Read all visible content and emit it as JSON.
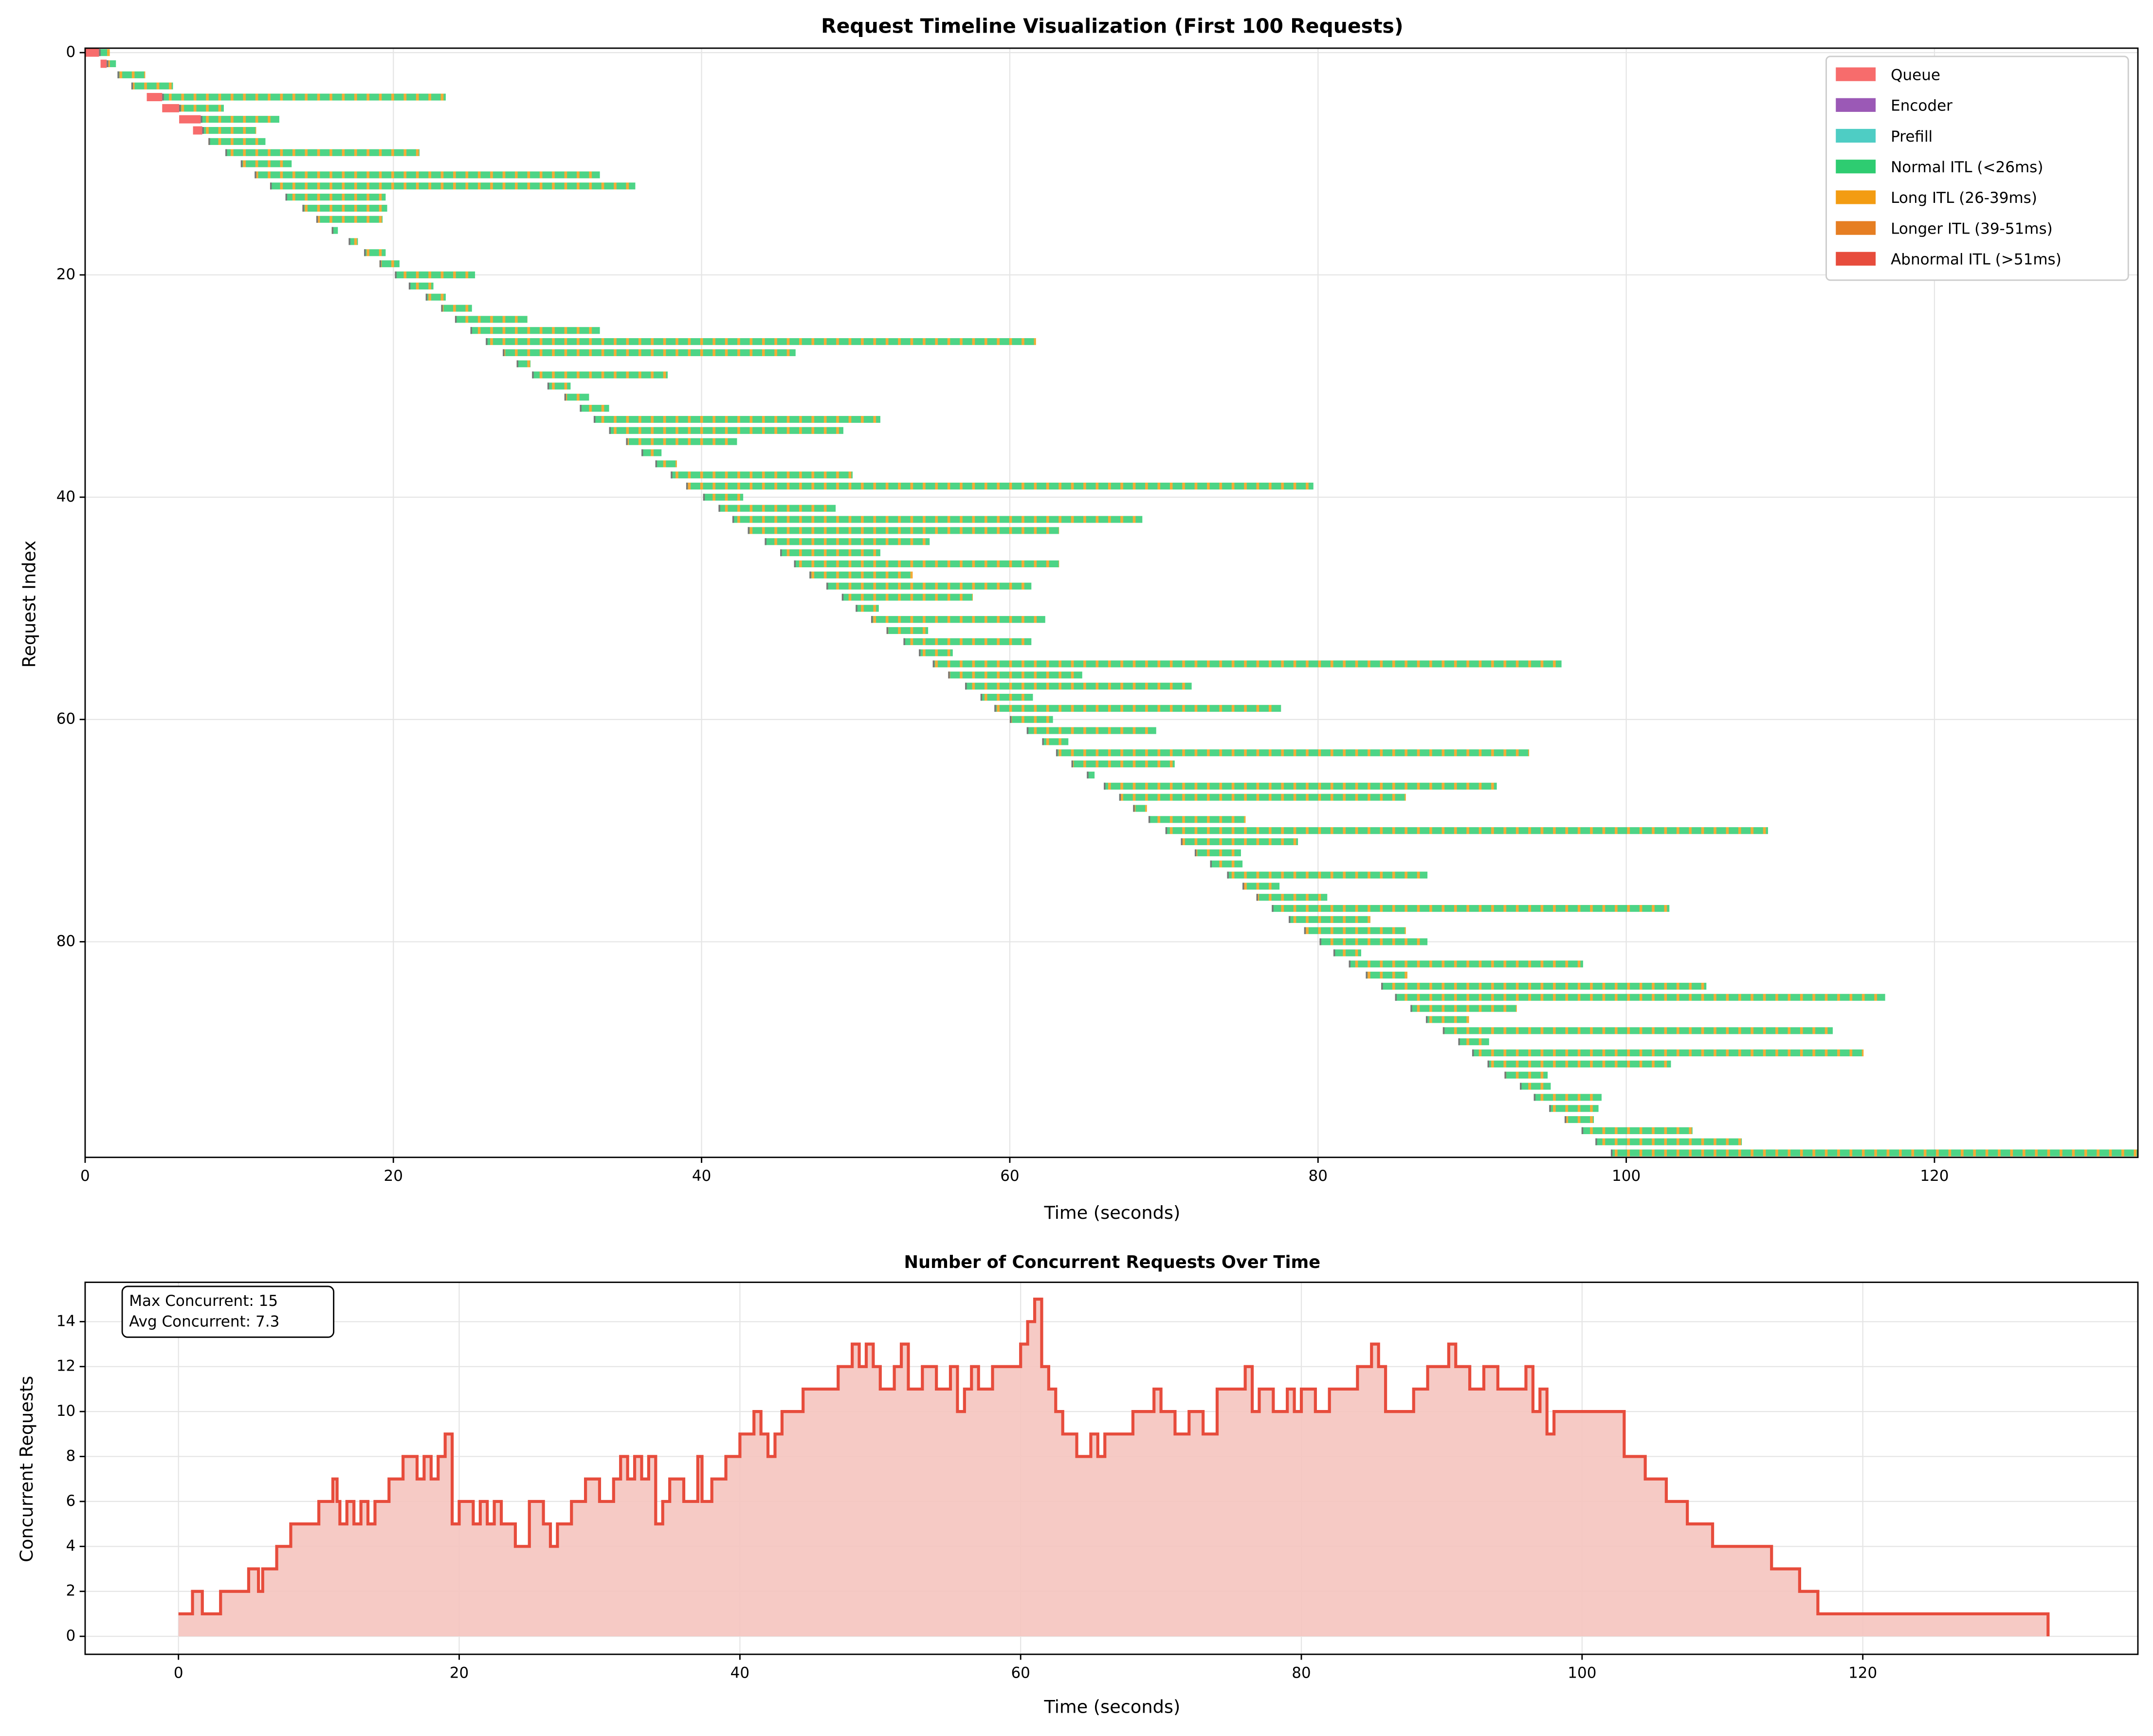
{
  "chart_data": [
    {
      "type": "timeline",
      "title": "Request Timeline Visualization (First 100 Requests)",
      "xlabel": "Time (seconds)",
      "ylabel": "Request Index",
      "xlim": [
        0,
        133.2
      ],
      "xticks": [
        0,
        20,
        40,
        60,
        80,
        100,
        120
      ],
      "ylim": [
        -0.4,
        99.4
      ],
      "yticks": [
        0,
        20,
        40,
        60,
        80
      ],
      "y_inverted": true,
      "grid": true,
      "legend_position": "upper right",
      "legend": [
        {
          "name": "Queue",
          "color": "#f76c6c"
        },
        {
          "name": "Encoder",
          "color": "#9b59b6"
        },
        {
          "name": "Prefill",
          "color": "#4ecdc4"
        },
        {
          "name": "Normal ITL (<26ms)",
          "color": "#2ecc71"
        },
        {
          "name": "Long ITL (26-39ms)",
          "color": "#f39c12"
        },
        {
          "name": "Longer ITL (39-51ms)",
          "color": "#e67e22"
        },
        {
          "name": "Abnormal ITL (>51ms)",
          "color": "#e74c3c"
        }
      ],
      "arrival": [
        0,
        1.0,
        2.1,
        3.0,
        4.0,
        5.0,
        6.1,
        7.0,
        8.0,
        9.1,
        10.1,
        11.0,
        12.0,
        13.0,
        14.1,
        15.0,
        16.0,
        17.1,
        18.1,
        19.1,
        20.1,
        21.0,
        22.1,
        23.1,
        24.0,
        25.0,
        26.0,
        27.1,
        28.0,
        29.0,
        30.0,
        31.1,
        32.1,
        33.0,
        34.0,
        35.1,
        36.1,
        37.0,
        38.0,
        39.0,
        40.1,
        41.1,
        42.0,
        43.0,
        44.1,
        45.1,
        46.0,
        47.0,
        48.1,
        49.1,
        50.0,
        51.0,
        52.0,
        53.1,
        54.1,
        55.0,
        56.0,
        57.1,
        58.1,
        59.0,
        60.0,
        61.1,
        62.1,
        63.0,
        64.0,
        65.0,
        66.1,
        67.1,
        68.0,
        69.0,
        70.1,
        71.1,
        72.0,
        73.0,
        74.1,
        75.1,
        76.0,
        77.0,
        78.1,
        79.1,
        80.1,
        81.0,
        82.0,
        83.1,
        84.1,
        85.0,
        86.0,
        87.0,
        88.1,
        89.1,
        90.0,
        91.0,
        92.1,
        93.1,
        94.0,
        95.0,
        96.0,
        97.1,
        98.0,
        99.0
      ],
      "start": [
        0.9,
        1.4,
        2.1,
        3.0,
        5.0,
        6.1,
        7.5,
        7.6,
        8.0,
        9.1,
        10.1,
        11.0,
        12.0,
        13.0,
        14.1,
        15.0,
        16.0,
        17.1,
        18.1,
        19.1,
        20.1,
        21.0,
        22.1,
        23.1,
        24.0,
        25.0,
        26.0,
        27.1,
        28.0,
        29.0,
        30.0,
        31.1,
        32.1,
        33.0,
        34.0,
        35.1,
        36.1,
        37.0,
        38.0,
        39.0,
        40.1,
        41.1,
        42.0,
        43.0,
        44.1,
        45.1,
        46.0,
        47.0,
        48.1,
        49.1,
        50.0,
        51.0,
        52.0,
        53.1,
        54.1,
        55.0,
        56.0,
        57.1,
        58.1,
        59.0,
        60.0,
        61.1,
        62.1,
        63.0,
        64.0,
        65.0,
        66.1,
        67.1,
        68.0,
        69.0,
        70.1,
        71.1,
        72.0,
        73.0,
        74.1,
        75.1,
        76.0,
        77.0,
        78.1,
        79.1,
        80.1,
        81.0,
        82.0,
        83.1,
        84.1,
        85.0,
        86.0,
        87.0,
        88.1,
        89.1,
        90.0,
        91.0,
        92.1,
        93.1,
        94.0,
        95.0,
        96.0,
        97.1,
        98.0,
        99.0
      ],
      "end": [
        1.6,
        2.0,
        3.9,
        5.7,
        23.4,
        9.0,
        12.6,
        11.1,
        11.7,
        21.7,
        13.4,
        33.4,
        35.7,
        19.5,
        19.6,
        19.3,
        16.4,
        17.7,
        19.5,
        20.4,
        25.3,
        22.6,
        23.4,
        25.1,
        28.7,
        33.4,
        61.7,
        46.1,
        28.9,
        37.8,
        31.5,
        32.7,
        34.0,
        51.6,
        49.2,
        42.3,
        37.4,
        38.4,
        49.8,
        79.7,
        42.7,
        48.7,
        68.6,
        63.2,
        54.8,
        51.6,
        63.2,
        53.7,
        61.4,
        57.6,
        51.5,
        62.3,
        54.7,
        61.4,
        56.3,
        95.8,
        64.7,
        71.8,
        61.5,
        77.6,
        62.8,
        69.5,
        63.8,
        93.7,
        70.7,
        65.5,
        91.6,
        85.7,
        68.9,
        75.3,
        109.2,
        78.7,
        75.0,
        75.1,
        87.1,
        77.5,
        80.6,
        102.8,
        83.4,
        85.7,
        87.1,
        82.8,
        97.2,
        85.8,
        105.2,
        116.8,
        92.9,
        89.8,
        113.4,
        91.1,
        115.4,
        102.9,
        94.9,
        95.1,
        98.4,
        98.2,
        97.9,
        104.3,
        107.5,
        133.2
      ]
    },
    {
      "type": "line",
      "step": true,
      "title": "Number of Concurrent Requests Over Time",
      "xlabel": "Time (seconds)",
      "ylabel": "Concurrent Requests",
      "color": "#e74c3c",
      "fill_color": "#f5c4bf",
      "grid": true,
      "annotation": [
        "Max Concurrent: 15",
        "Avg Concurrent: 7.3"
      ],
      "xlim": [
        -6.65,
        139.6
      ],
      "xticks": [
        0,
        20,
        40,
        60,
        80,
        100,
        120
      ],
      "ylim": [
        -0.8,
        15.75
      ],
      "yticks": [
        0,
        2,
        4,
        6,
        8,
        10,
        12,
        14
      ],
      "x": [
        0,
        1,
        1.7,
        3,
        5,
        5.7,
        6,
        7,
        8,
        10,
        11,
        11.3,
        11.5,
        12,
        12.5,
        13,
        13.5,
        14,
        15,
        16,
        17,
        17.5,
        18,
        18.5,
        19,
        19.5,
        20,
        21,
        21.5,
        22,
        22.5,
        23,
        24,
        25,
        26,
        26.5,
        27,
        28,
        29,
        30,
        31,
        31.5,
        32,
        32.5,
        33,
        33.5,
        34,
        34.5,
        35,
        36,
        37,
        37.3,
        38,
        39,
        40,
        41,
        41.5,
        42,
        42.5,
        43,
        44.5,
        47,
        48,
        48.5,
        49,
        49.5,
        50,
        51,
        51.5,
        52,
        53,
        54,
        55,
        55.5,
        56,
        56.5,
        57,
        58,
        60,
        60.5,
        61,
        61.5,
        62,
        62.5,
        63,
        64,
        65,
        65.5,
        66,
        68,
        69.5,
        70,
        71,
        72,
        73,
        74,
        76,
        76.5,
        77,
        78,
        79,
        79.5,
        80,
        81,
        82,
        84,
        85,
        85.5,
        86,
        88,
        89,
        90.5,
        91,
        92,
        93,
        94,
        96,
        96.5,
        97,
        97.5,
        98,
        103,
        104.5,
        106,
        107.5,
        109.3,
        113.5,
        115.5,
        116.8,
        133.2,
        133.2
      ],
      "values": [
        1,
        2,
        1,
        2,
        3,
        2,
        3,
        4,
        5,
        6,
        7,
        6,
        5,
        6,
        5,
        6,
        5,
        6,
        7,
        8,
        7,
        8,
        7,
        8,
        9,
        5,
        6,
        5,
        6,
        5,
        6,
        5,
        4,
        6,
        5,
        4,
        5,
        6,
        7,
        6,
        7,
        8,
        7,
        8,
        7,
        8,
        5,
        6,
        7,
        6,
        8,
        6,
        7,
        8,
        9,
        10,
        9,
        8,
        9,
        10,
        11,
        12,
        13,
        12,
        13,
        12,
        11,
        12,
        13,
        11,
        12,
        11,
        12,
        10,
        11,
        12,
        11,
        12,
        13,
        14,
        15,
        12,
        11,
        10,
        9,
        8,
        9,
        8,
        9,
        10,
        11,
        10,
        9,
        10,
        9,
        11,
        12,
        10,
        11,
        10,
        11,
        10,
        11,
        10,
        11,
        12,
        13,
        12,
        10,
        11,
        12,
        13,
        12,
        11,
        12,
        11,
        12,
        10,
        11,
        9,
        10,
        8,
        7,
        6,
        5,
        4,
        3,
        2,
        1,
        1,
        0
      ]
    }
  ]
}
